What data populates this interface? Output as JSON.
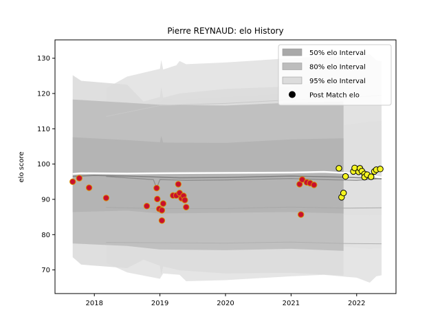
{
  "chart_data": {
    "type": "scatter",
    "title": "Pierre REYNAUD: elo History",
    "xlabel": "",
    "ylabel": "elo score",
    "xlim": [
      2017.4,
      2022.6
    ],
    "ylim": [
      63.3,
      135.2
    ],
    "x_ticks": [
      2018,
      2019,
      2020,
      2021,
      2022
    ],
    "x_tick_labels": [
      "2018",
      "2019",
      "2020",
      "2021",
      "2022"
    ],
    "y_ticks": [
      70,
      80,
      90,
      100,
      110,
      120,
      130
    ],
    "y_tick_labels": [
      "70",
      "80",
      "90",
      "100",
      "110",
      "120",
      "130"
    ],
    "grid": false,
    "legend_position": "top-right",
    "legend": [
      {
        "label": "50% elo Interval",
        "kind": "patch",
        "color": "#a9a9a9"
      },
      {
        "label": "80% elo Interval",
        "kind": "patch",
        "color": "#bdbdbd"
      },
      {
        "label": "95% elo Interval",
        "kind": "patch",
        "color": "#dcdcdc"
      },
      {
        "label": "Post Match elo",
        "kind": "marker",
        "color": "#000000"
      }
    ],
    "colors": {
      "band50": "#a9a9a9",
      "band80": "#bdbdbd",
      "band95": "#dcdcdc",
      "early_fill": "#c8102e",
      "early_edge": "#d88a00",
      "late_fill": "#f5f522",
      "late_edge": "#000000"
    },
    "series": [
      {
        "group": "early",
        "points": [
          [
            2017.67,
            95.0
          ],
          [
            2017.77,
            96.0
          ],
          [
            2017.92,
            93.3
          ],
          [
            2018.18,
            90.4
          ],
          [
            2018.8,
            88.1
          ],
          [
            2018.95,
            93.2
          ],
          [
            2018.96,
            90.1
          ],
          [
            2018.99,
            87.3
          ],
          [
            2019.03,
            86.9
          ],
          [
            2019.03,
            84.0
          ],
          [
            2019.05,
            88.8
          ],
          [
            2019.2,
            91.1
          ],
          [
            2019.25,
            91.1
          ],
          [
            2019.28,
            94.3
          ],
          [
            2019.3,
            91.8
          ],
          [
            2019.33,
            90.3
          ],
          [
            2019.36,
            91.0
          ],
          [
            2019.38,
            89.8
          ],
          [
            2019.4,
            87.8
          ],
          [
            2021.13,
            94.3
          ],
          [
            2021.15,
            85.7
          ],
          [
            2021.17,
            95.6
          ],
          [
            2021.24,
            94.8
          ],
          [
            2021.29,
            94.6
          ],
          [
            2021.35,
            94.1
          ]
        ]
      },
      {
        "group": "late",
        "points": [
          [
            2021.73,
            98.8
          ],
          [
            2021.77,
            90.6
          ],
          [
            2021.8,
            91.8
          ],
          [
            2021.83,
            96.5
          ],
          [
            2021.95,
            97.9
          ],
          [
            2021.97,
            98.9
          ],
          [
            2022.03,
            97.8
          ],
          [
            2022.05,
            98.8
          ],
          [
            2022.08,
            98.0
          ],
          [
            2022.12,
            97.2
          ],
          [
            2022.12,
            96.3
          ],
          [
            2022.16,
            97.0
          ],
          [
            2022.22,
            96.4
          ],
          [
            2022.27,
            97.9
          ],
          [
            2022.3,
            98.4
          ],
          [
            2022.36,
            98.6
          ]
        ]
      }
    ]
  }
}
